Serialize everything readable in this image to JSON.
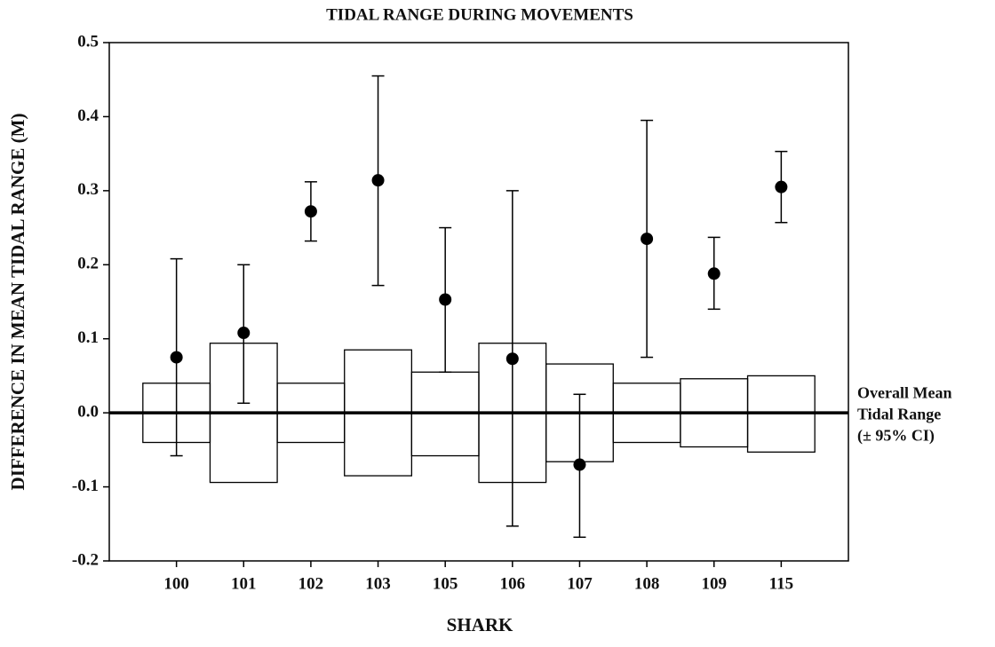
{
  "chart_data": {
    "type": "errorbar",
    "title": "TIDAL RANGE DURING MOVEMENTS",
    "xlabel": "SHARK",
    "ylabel": "DIFFERENCE IN MEAN TIDAL RANGE (M)",
    "categories": [
      "100",
      "101",
      "102",
      "103",
      "105",
      "106",
      "107",
      "108",
      "109",
      "115"
    ],
    "values": [
      0.075,
      0.108,
      0.272,
      0.314,
      0.153,
      0.073,
      -0.07,
      0.235,
      0.188,
      0.305
    ],
    "upper": [
      0.208,
      0.2,
      0.312,
      0.455,
      0.25,
      0.3,
      0.025,
      0.395,
      0.237,
      0.353
    ],
    "lower": [
      -0.058,
      0.013,
      0.232,
      0.172,
      0.055,
      -0.153,
      -0.168,
      0.075,
      0.14,
      0.257
    ],
    "band_upper": [
      0.04,
      0.094,
      0.04,
      0.085,
      0.055,
      0.094,
      0.066,
      0.04,
      0.046,
      0.05
    ],
    "band_lower": [
      -0.04,
      -0.094,
      -0.04,
      -0.085,
      -0.058,
      -0.094,
      -0.066,
      -0.04,
      -0.046,
      -0.053
    ],
    "reference_line": 0,
    "annotation": [
      "Overall Mean",
      "Tidal Range",
      "(± 95% CI)"
    ],
    "color": "#000000",
    "ylim": [
      -0.2,
      0.5
    ],
    "yticks": [
      -0.2,
      -0.1,
      {
        "value": 0,
        "label": "0.0"
      },
      0.1,
      0.2,
      0.3,
      0.4,
      0.5
    ]
  }
}
